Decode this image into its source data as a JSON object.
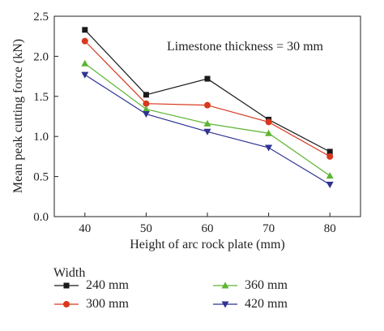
{
  "chart_data": {
    "type": "line",
    "x": [
      40,
      50,
      60,
      70,
      80
    ],
    "xlabel": "Height of arc rock plate (mm)",
    "ylabel": "Mean peak cutting force (kN)",
    "xlim": [
      35,
      85
    ],
    "ylim": [
      0.0,
      2.5
    ],
    "xticks": [
      "40",
      "50",
      "60",
      "70",
      "80"
    ],
    "yticks": [
      "0.0",
      "0.5",
      "1.0",
      "1.5",
      "2.0",
      "2.5"
    ],
    "annotation": "Limestone thickness = 30 mm",
    "grid": false,
    "legend_title": "Width",
    "legend_position": "bottom",
    "series": [
      {
        "name": "240 mm",
        "color": "#1a1a1a",
        "marker": "square",
        "values": [
          2.33,
          1.52,
          1.72,
          1.21,
          0.81
        ]
      },
      {
        "name": "300 mm",
        "color": "#d9381e",
        "marker": "circle",
        "values": [
          2.19,
          1.41,
          1.39,
          1.18,
          0.75
        ]
      },
      {
        "name": "360 mm",
        "color": "#5cb531",
        "marker": "triangle",
        "values": [
          1.91,
          1.34,
          1.16,
          1.04,
          0.51
        ]
      },
      {
        "name": "420 mm",
        "color": "#2f3391",
        "marker": "triangle-down",
        "values": [
          1.77,
          1.28,
          1.06,
          0.86,
          0.4
        ]
      }
    ]
  }
}
